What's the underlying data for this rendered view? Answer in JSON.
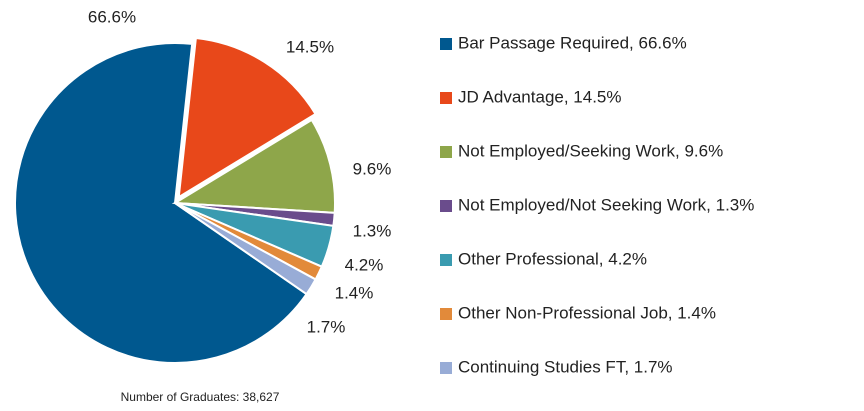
{
  "chart_data": {
    "type": "pie",
    "categories": [
      "Bar Passage Required, 66.6%",
      "JD Advantage, 14.5%",
      "Not Employed/Seeking Work, 9.6%",
      "Not Employed/Not Seeking Work, 1.3%",
      "Other Professional, 4.2%",
      "Other Non-Professional Job, 1.4%",
      "Continuing Studies FT, 1.7%"
    ],
    "values": [
      66.6,
      14.5,
      9.6,
      1.3,
      4.2,
      1.4,
      1.7
    ],
    "value_labels": [
      "66.6%",
      "14.5%",
      "9.6%",
      "1.3%",
      "4.2%",
      "1.4%",
      "1.7%"
    ],
    "colors": [
      "#00588f",
      "#e8481a",
      "#8ea64a",
      "#6a4c8c",
      "#3a9bb0",
      "#e28a3a",
      "#98acd6"
    ],
    "annotation": "Number of Graduates: 38,627",
    "legend": "right"
  }
}
